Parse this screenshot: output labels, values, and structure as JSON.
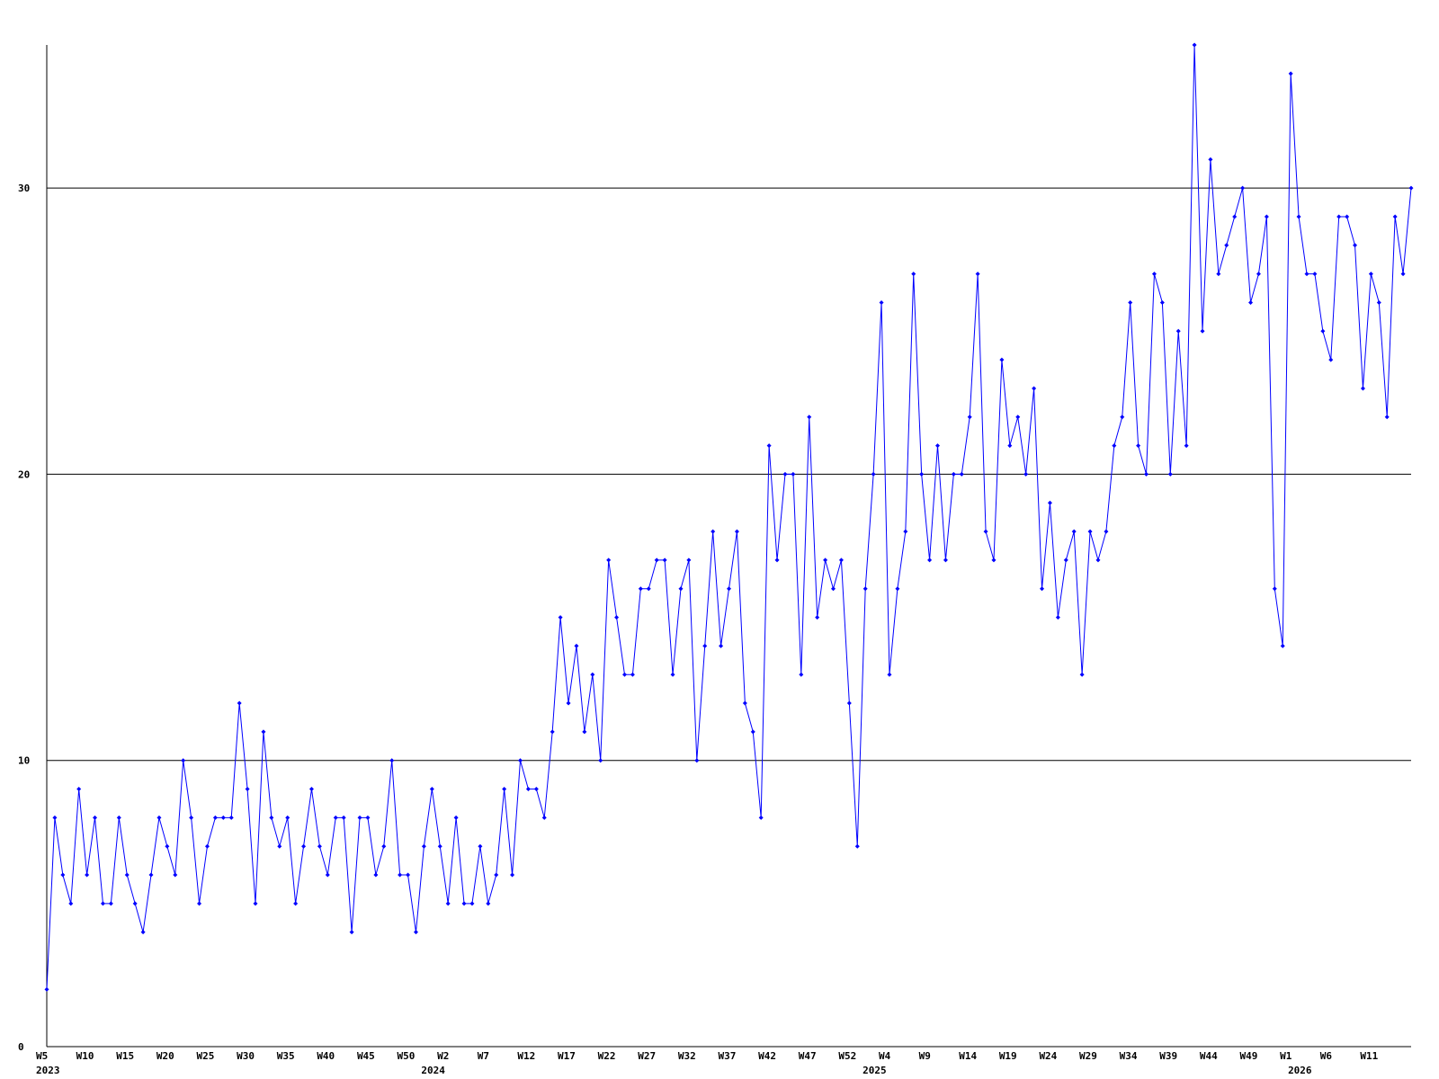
{
  "chart_data": {
    "type": "line",
    "color": "#0000ff",
    "ylim": [
      0,
      35
    ],
    "yticks": [
      0,
      10,
      20,
      30
    ],
    "grid": true,
    "categories": [
      "W5",
      null,
      null,
      null,
      null,
      "W10",
      null,
      null,
      null,
      null,
      "W15",
      null,
      null,
      null,
      null,
      "W20",
      null,
      null,
      null,
      null,
      "W25",
      null,
      null,
      null,
      null,
      "W30",
      null,
      null,
      null,
      null,
      "W35",
      null,
      null,
      null,
      null,
      "W40",
      null,
      null,
      null,
      null,
      "W45",
      null,
      null,
      null,
      null,
      "W50",
      null,
      null,
      null,
      null,
      "W2",
      null,
      null,
      null,
      null,
      "W7",
      null,
      null,
      null,
      null,
      "W12",
      null,
      null,
      null,
      null,
      "W17",
      null,
      null,
      null,
      null,
      "W22",
      null,
      null,
      null,
      null,
      "W27",
      null,
      null,
      null,
      null,
      "W32",
      null,
      null,
      null,
      null,
      "W37",
      null,
      null,
      null,
      null,
      "W42",
      null,
      null,
      null,
      null,
      "W47",
      null,
      null,
      null,
      null,
      "W52",
      null,
      null,
      null,
      null,
      "W4",
      null,
      null,
      null,
      null,
      "W9",
      null,
      null,
      null,
      null,
      "W14",
      null,
      null,
      null,
      null,
      "W19",
      null,
      null,
      null,
      null,
      "W24",
      null,
      null,
      null,
      null,
      "W29",
      null,
      null,
      null,
      null,
      "W34",
      null,
      null,
      null,
      null,
      "W39",
      null,
      null,
      null,
      null,
      "W44",
      null,
      null,
      null,
      null,
      "W49",
      null,
      null,
      null,
      null,
      "W1",
      null,
      null,
      null,
      null,
      "W6",
      null,
      null,
      null,
      null,
      "W11",
      null,
      null,
      null,
      null,
      null
    ],
    "years": [
      "2023",
      null,
      null,
      null,
      null,
      null,
      null,
      null,
      null,
      null,
      null,
      null,
      null,
      null,
      null,
      null,
      null,
      null,
      null,
      null,
      null,
      null,
      null,
      null,
      null,
      null,
      null,
      null,
      null,
      null,
      null,
      null,
      null,
      null,
      null,
      null,
      null,
      null,
      null,
      null,
      null,
      null,
      null,
      null,
      null,
      null,
      null,
      null,
      "2024",
      null,
      null,
      null,
      null,
      null,
      null,
      null,
      null,
      null,
      null,
      null,
      null,
      null,
      null,
      null,
      null,
      null,
      null,
      null,
      null,
      null,
      null,
      null,
      null,
      null,
      null,
      null,
      null,
      null,
      null,
      null,
      null,
      null,
      null,
      null,
      null,
      null,
      null,
      null,
      null,
      null,
      null,
      null,
      null,
      null,
      null,
      null,
      null,
      null,
      null,
      null,
      null,
      null,
      null,
      "2025",
      null,
      null,
      null,
      null,
      null,
      null,
      null,
      null,
      null,
      null,
      null,
      null,
      null,
      null,
      null,
      null,
      null,
      null,
      null,
      null,
      null,
      null,
      null,
      null,
      null,
      null,
      null,
      null,
      null,
      null,
      null,
      null,
      null,
      null,
      null,
      null,
      null,
      null,
      null,
      null,
      null,
      null,
      null,
      null,
      null,
      null,
      null,
      null,
      null,
      null,
      null,
      null,
      "2026",
      null,
      null,
      null,
      null,
      null,
      null,
      null,
      null,
      null,
      null,
      null,
      null,
      null,
      null,
      null,
      null
    ],
    "values": [
      2,
      8,
      6,
      5,
      9,
      6,
      8,
      5,
      5,
      8,
      6,
      5,
      4,
      6,
      8,
      7,
      6,
      10,
      8,
      5,
      7,
      8,
      8,
      8,
      12,
      9,
      5,
      11,
      8,
      7,
      8,
      5,
      7,
      9,
      7,
      6,
      8,
      8,
      4,
      8,
      8,
      6,
      7,
      10,
      6,
      6,
      4,
      7,
      9,
      7,
      5,
      8,
      5,
      5,
      7,
      5,
      6,
      9,
      6,
      10,
      9,
      9,
      8,
      11,
      15,
      12,
      14,
      11,
      13,
      10,
      17,
      15,
      13,
      13,
      16,
      16,
      17,
      17,
      13,
      16,
      17,
      10,
      14,
      18,
      14,
      16,
      18,
      12,
      11,
      8,
      21,
      17,
      20,
      20,
      13,
      22,
      15,
      17,
      16,
      17,
      12,
      7,
      16,
      20,
      26,
      13,
      16,
      18,
      27,
      20,
      17,
      21,
      17,
      20,
      20,
      22,
      27,
      18,
      17,
      24,
      21,
      22,
      20,
      23,
      16,
      19,
      15,
      17,
      18,
      13,
      18,
      17,
      18,
      21,
      22,
      26,
      21,
      20,
      27,
      26,
      20,
      25,
      21,
      35,
      25,
      31,
      27,
      28,
      29,
      30,
      26,
      27,
      29,
      16,
      14,
      34,
      29,
      27,
      27,
      25,
      24,
      29,
      29,
      28,
      23,
      27,
      26,
      22,
      29,
      27,
      30
    ]
  }
}
